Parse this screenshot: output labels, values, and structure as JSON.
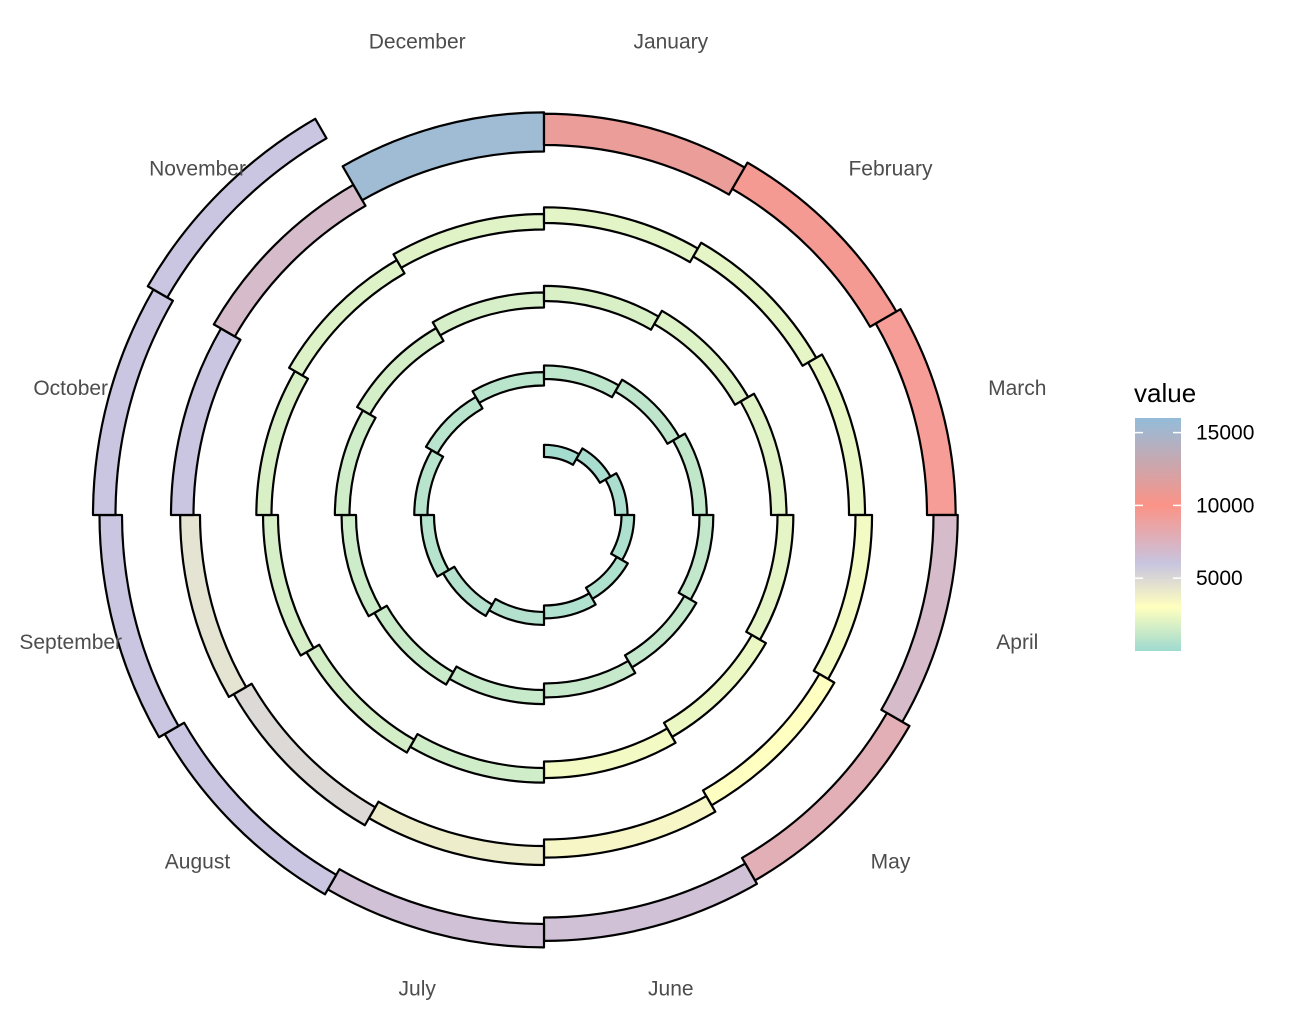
{
  "chart_data": {
    "type": "spiral-heatmap",
    "months": [
      "January",
      "February",
      "March",
      "April",
      "May",
      "June",
      "July",
      "August",
      "September",
      "October",
      "November",
      "December"
    ],
    "legend": {
      "title": "value",
      "ticks": [
        5000,
        10000,
        15000
      ],
      "tick_labels": [
        "5000",
        "10000",
        "15000"
      ],
      "min": 0,
      "max": 16000,
      "color_stops": [
        {
          "value": 0,
          "color": "#8dd3c7"
        },
        {
          "value": 3000,
          "color": "#ffffb3"
        },
        {
          "value": 6000,
          "color": "#bebada"
        },
        {
          "value": 10000,
          "color": "#fb8072"
        },
        {
          "value": 16000,
          "color": "#80b1d3"
        }
      ]
    },
    "series": [
      {
        "values": [
          100,
          200,
          300,
          400,
          450,
          500,
          550,
          600,
          650,
          700,
          750,
          800
        ]
      },
      {
        "values": [
          900,
          950,
          1000,
          1050,
          1100,
          1150,
          1200,
          1300,
          1400,
          1500,
          1600,
          1700
        ]
      },
      {
        "values": [
          1800,
          1900,
          2000,
          2200,
          2400,
          2600,
          1500,
          1600,
          1700,
          1800,
          1900,
          2000
        ]
      },
      {
        "values": [
          2100,
          2200,
          2300,
          2600,
          3000,
          3500,
          4000,
          5000,
          4500,
          6000,
          7000,
          15500
        ]
      },
      {
        "values": [
          11000,
          10500,
          9500,
          7000,
          8000,
          6500,
          6500,
          6000,
          6000,
          6000,
          6000,
          null
        ]
      }
    ]
  }
}
